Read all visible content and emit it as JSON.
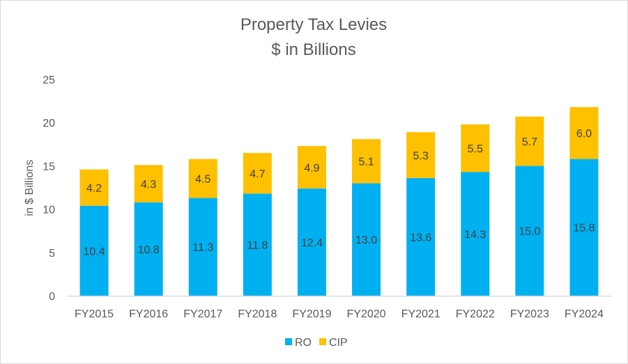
{
  "chart_data": {
    "type": "bar",
    "stacked": true,
    "title": "Property Tax Levies",
    "subtitle": "$ in Billions",
    "xlabel": "",
    "ylabel": "in $ Billions",
    "ylim": [
      0,
      25
    ],
    "yticks": [
      "0",
      "5",
      "10",
      "15",
      "20",
      "25"
    ],
    "grid": false,
    "legend_position": "bottom",
    "categories": [
      "FY2015",
      "FY2016",
      "FY2017",
      "FY2018",
      "FY2019",
      "FY2020",
      "FY2021",
      "FY2022",
      "FY2023",
      "FY2024"
    ],
    "series": [
      {
        "name": "RO",
        "color": "#00B0F0",
        "values": [
          10.4,
          10.8,
          11.3,
          11.8,
          12.4,
          13.0,
          13.6,
          14.3,
          15.0,
          15.8
        ],
        "labels": [
          "10.4",
          "10.8",
          "11.3",
          "11.8",
          "12.4",
          "13.0",
          "13.6",
          "14.3",
          "15.0",
          "15.8"
        ]
      },
      {
        "name": "CIP",
        "color": "#FFC000",
        "values": [
          4.2,
          4.3,
          4.5,
          4.7,
          4.9,
          5.1,
          5.3,
          5.5,
          5.7,
          6.0
        ],
        "labels": [
          "4.2",
          "4.3",
          "4.5",
          "4.7",
          "4.9",
          "5.1",
          "5.3",
          "5.5",
          "5.7",
          "6.0"
        ]
      }
    ]
  }
}
